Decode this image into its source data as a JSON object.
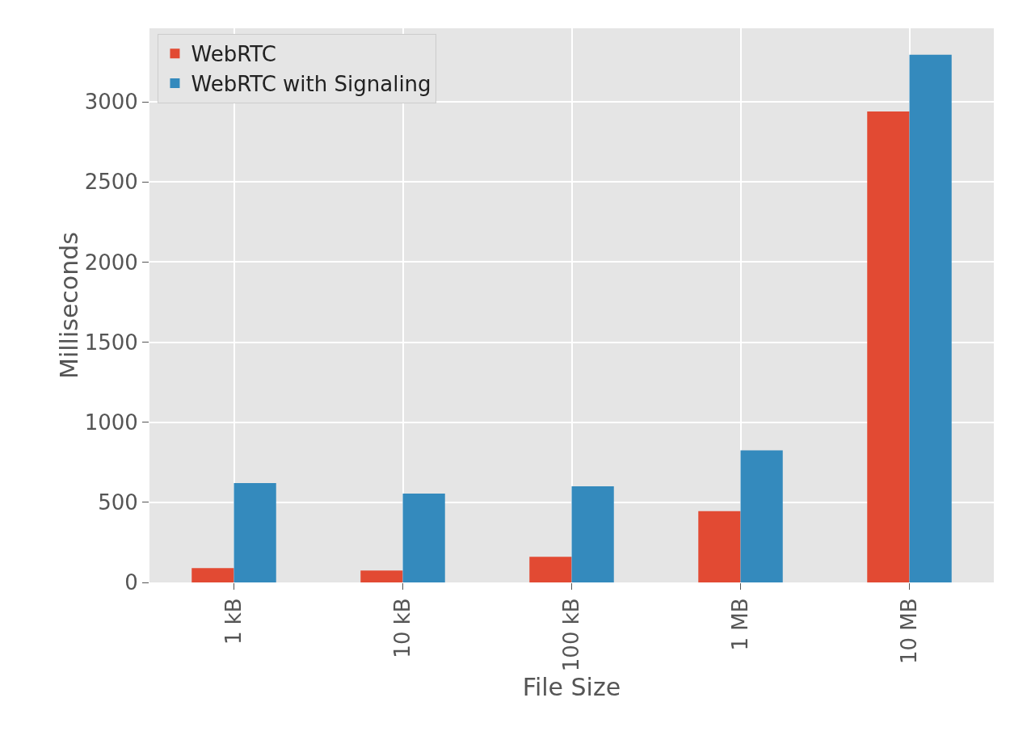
{
  "chart_data": {
    "type": "bar",
    "xlabel": "File Size",
    "ylabel": "Milliseconds",
    "categories": [
      "1 kB",
      "10 kB",
      "100 kB",
      "1 MB",
      "10 MB"
    ],
    "series": [
      {
        "name": "WebRTC",
        "color": "#e24a33",
        "values": [
          90,
          75,
          160,
          445,
          2940
        ]
      },
      {
        "name": "WebRTC with Signaling",
        "color": "#348abd",
        "values": [
          620,
          555,
          600,
          825,
          3295
        ]
      }
    ],
    "ylim": [
      0,
      3460
    ],
    "yticks": [
      0,
      500,
      1000,
      1500,
      2000,
      2500,
      3000
    ],
    "grid": true,
    "legend": "top left"
  }
}
